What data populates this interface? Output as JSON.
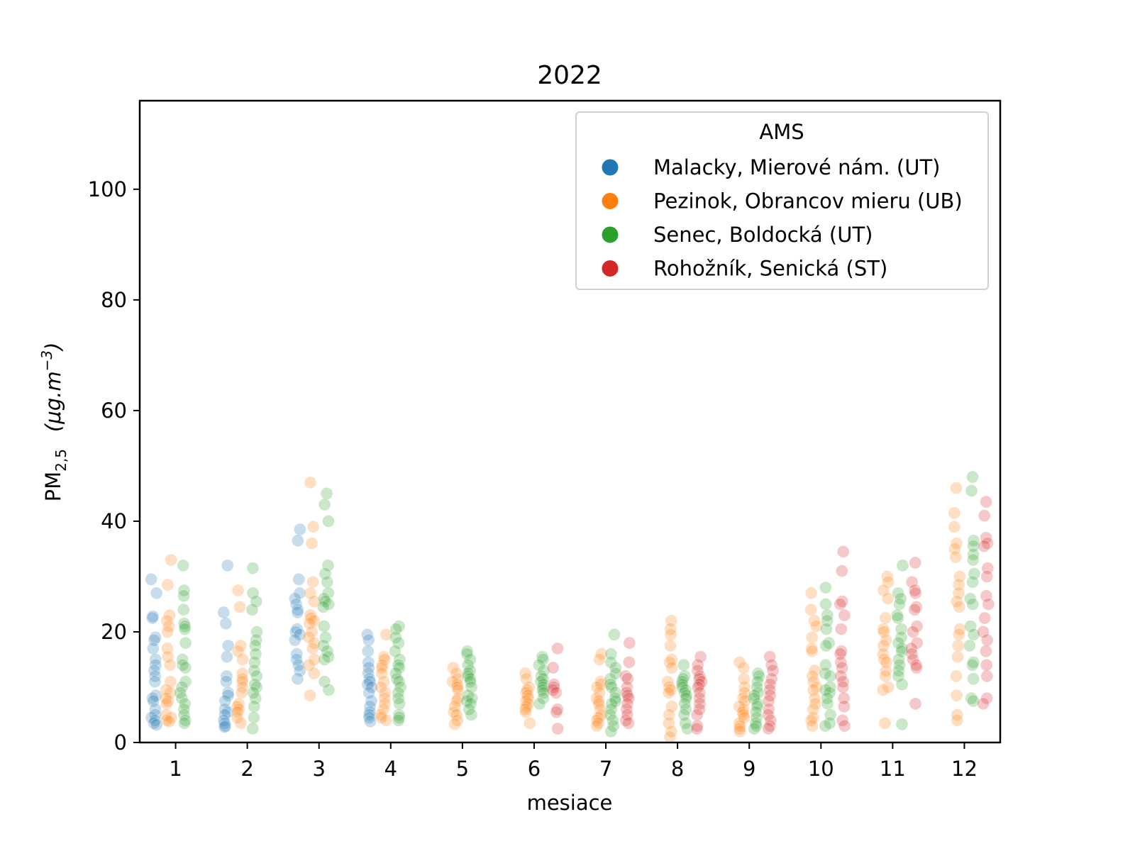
{
  "chart_data": {
    "type": "scatter",
    "subtype": "stripplot",
    "title": "2022",
    "xlabel": "mesiace",
    "ylabel": {
      "main": "PM",
      "sub": "2,5",
      "unit_open": "(",
      "unit": "μg.m",
      "unit_sup": "−3",
      "unit_close": ")"
    },
    "xlim": [
      0.5,
      12.5
    ],
    "ylim": [
      0,
      116
    ],
    "x_ticks": [
      "1",
      "2",
      "3",
      "4",
      "5",
      "6",
      "7",
      "8",
      "9",
      "10",
      "11",
      "12"
    ],
    "y_ticks": [
      0,
      20,
      40,
      60,
      80,
      100
    ],
    "grid": false,
    "legend": {
      "title": "AMS",
      "position": "top-right"
    },
    "series": [
      {
        "name": "Malacky, Mierové nám. (UT)",
        "color": "#1f77b4",
        "offset": -0.3,
        "values": {
          "1": [
            29.5,
            27,
            22.8,
            22.5,
            19,
            18.5,
            17,
            15,
            14,
            13,
            12,
            11,
            8.5,
            8,
            7.5,
            6,
            5,
            4.5,
            4,
            3.5,
            3.2
          ],
          "2": [
            32,
            23.5,
            21.5,
            17.5,
            15.5,
            12,
            11,
            9,
            8.5,
            7.5,
            6,
            5.5,
            5,
            4,
            3.5,
            3,
            2.8
          ],
          "3": [
            38.5,
            36.5,
            29.5,
            27,
            26,
            25,
            24,
            23.5,
            20.5,
            20,
            19.5,
            18.5,
            16,
            15,
            14,
            13,
            11.5
          ],
          "4": [
            19.5,
            18.5,
            16.5,
            14.5,
            13.5,
            12.5,
            11.5,
            11,
            10.5,
            10,
            9,
            7.5,
            6.5,
            5.5,
            5,
            4.5,
            3.8
          ]
        }
      },
      {
        "name": "Pezinok, Obrancov mieru (UB)",
        "color": "#ff7f0e",
        "offset": -0.1,
        "values": {
          "1": [
            33,
            28.5,
            23,
            22,
            21,
            20,
            17,
            15.5,
            14,
            11,
            9.5,
            9,
            8,
            7.5,
            7,
            5,
            4.5,
            4,
            3.8
          ],
          "2": [
            27.5,
            24.5,
            17.5,
            16.5,
            15,
            12.5,
            11.5,
            11,
            10,
            9,
            7,
            6.5,
            6,
            5.5,
            4.5,
            3.5
          ],
          "3": [
            47,
            39,
            36,
            29,
            27,
            25.5,
            23,
            22.5,
            22,
            21.5,
            20,
            19,
            18,
            17,
            15,
            14,
            12.5,
            8.5
          ],
          "4": [
            19.5,
            15.5,
            15,
            14,
            13.5,
            12.5,
            11,
            10,
            9,
            8,
            7,
            6,
            5,
            4.5,
            4
          ],
          "5": [
            13.5,
            12.5,
            11.5,
            11,
            10.5,
            10,
            9.5,
            8,
            7.5,
            6.5,
            5.5,
            5,
            4,
            3.3
          ],
          "6": [
            12.5,
            11.5,
            10,
            9.5,
            9,
            8.5,
            8,
            7.5,
            7,
            6.5,
            6,
            5.5,
            3.5
          ],
          "7": [
            16,
            15,
            11,
            10.5,
            10,
            9,
            8,
            7.5,
            7,
            6,
            5,
            4.5,
            4,
            3.5,
            3
          ],
          "8": [
            22,
            20.5,
            19.5,
            17.5,
            15,
            14.5,
            13.5,
            11,
            10,
            9.5,
            9,
            6.5,
            5,
            3.5,
            2,
            1
          ],
          "9": [
            14.5,
            13.5,
            11.5,
            10,
            9,
            8,
            7.5,
            6.5,
            6,
            5.5,
            5,
            4.5,
            3.5,
            3,
            2.5,
            2
          ],
          "10": [
            27,
            24,
            22,
            21,
            19,
            17,
            16.5,
            13,
            12,
            11,
            10,
            9.5,
            8,
            7,
            6,
            4.5,
            4,
            3
          ],
          "11": [
            30,
            29,
            27.5,
            26,
            22.5,
            20.5,
            20,
            18.5,
            17.5,
            16,
            15,
            14.5,
            13,
            12,
            10,
            9.5,
            3.5
          ],
          "12": [
            46,
            41.5,
            39,
            36,
            35,
            33.5,
            30,
            28.5,
            27,
            25.5,
            24.5,
            20.5,
            19.5,
            17.5,
            15.5,
            12,
            8.5,
            5,
            4
          ]
        }
      },
      {
        "name": "Senec, Boldocká (UT)",
        "color": "#2ca02c",
        "offset": 0.1,
        "values": {
          "1": [
            32,
            27.5,
            26.5,
            24,
            21.5,
            21,
            20.5,
            18,
            15,
            14,
            13.5,
            11,
            10,
            9,
            8,
            7,
            6,
            5,
            4,
            3.5
          ],
          "2": [
            31.5,
            27,
            25.5,
            24,
            20,
            18.5,
            17.5,
            16,
            14.5,
            13,
            12,
            10.5,
            10,
            9,
            8,
            6.5,
            4.5,
            2.5
          ],
          "3": [
            45,
            43,
            40,
            32,
            30.5,
            29,
            27,
            26,
            25.5,
            25,
            24.5,
            21,
            19,
            17.5,
            16.5,
            15.5,
            15,
            11,
            9.5
          ],
          "4": [
            21,
            20.5,
            19,
            18,
            16.5,
            15,
            14,
            13.5,
            12.5,
            11.5,
            11,
            10,
            9,
            8,
            7,
            5,
            4.5,
            4
          ],
          "5": [
            16.5,
            16,
            15,
            14,
            13,
            12.5,
            12,
            11.5,
            11,
            10,
            8.5,
            8,
            7.5,
            7,
            6,
            5
          ],
          "6": [
            15.5,
            15,
            14,
            13,
            12,
            11.5,
            11,
            10.5,
            10,
            9.5,
            9,
            8,
            7
          ],
          "7": [
            19.5,
            16,
            14.5,
            13.5,
            12.5,
            11.5,
            10.5,
            10,
            9,
            8,
            7.5,
            7,
            6,
            5,
            4,
            3,
            2
          ],
          "8": [
            14,
            12,
            11.5,
            11,
            10.5,
            10,
            9.5,
            9,
            8.5,
            8,
            7,
            6,
            5,
            3.5,
            2.5
          ],
          "9": [
            12.5,
            12,
            11,
            10,
            9,
            8.5,
            8,
            7,
            6.5,
            5.5,
            4.5,
            3.5,
            3,
            2.5
          ],
          "10": [
            28,
            25,
            23,
            22,
            20.5,
            18,
            17.5,
            14,
            12.5,
            12,
            10,
            9.5,
            9,
            8,
            7,
            5,
            3.5,
            3
          ],
          "11": [
            32,
            27,
            26,
            25,
            23,
            22.5,
            20.5,
            19,
            18,
            17,
            16.5,
            15,
            14,
            13,
            12,
            10.5,
            3.3
          ],
          "12": [
            48,
            45.5,
            36.5,
            35.5,
            34,
            33,
            30.5,
            29,
            26,
            25,
            21,
            19.5,
            17.5,
            14.5,
            14,
            11.5,
            8,
            7.5
          ]
        }
      },
      {
        "name": "Rohožník, Senická (ST)",
        "color": "#d62728",
        "offset": 0.3,
        "values": {
          "6": [
            17,
            13.5,
            10.5,
            10,
            9.5,
            9,
            6,
            5.5,
            2.5
          ],
          "7": [
            18,
            14.5,
            12,
            11.5,
            10,
            9,
            8.5,
            8,
            7,
            6,
            5,
            4,
            3.5
          ],
          "8": [
            15.5,
            14,
            13,
            12,
            11.5,
            11,
            10.5,
            10,
            9,
            8,
            7,
            6,
            5,
            3,
            2.5
          ],
          "9": [
            15.5,
            14,
            13,
            11.5,
            10.5,
            9.5,
            8.5,
            7.5,
            6,
            5,
            4,
            3,
            2.5
          ],
          "10": [
            34.5,
            31,
            25.5,
            25,
            23,
            20.5,
            16.5,
            16,
            14.5,
            13.5,
            12,
            11,
            10,
            8,
            6.5,
            4,
            3
          ],
          "11": [
            32.5,
            29,
            27.5,
            27,
            24.5,
            24,
            21,
            20,
            18,
            17,
            16,
            15,
            14,
            13.5,
            7
          ],
          "12": [
            43.5,
            41,
            37,
            36,
            35.5,
            31.5,
            30,
            26.5,
            25,
            22.5,
            20,
            18.5,
            16.5,
            14,
            12,
            8,
            7
          ]
        }
      }
    ]
  }
}
